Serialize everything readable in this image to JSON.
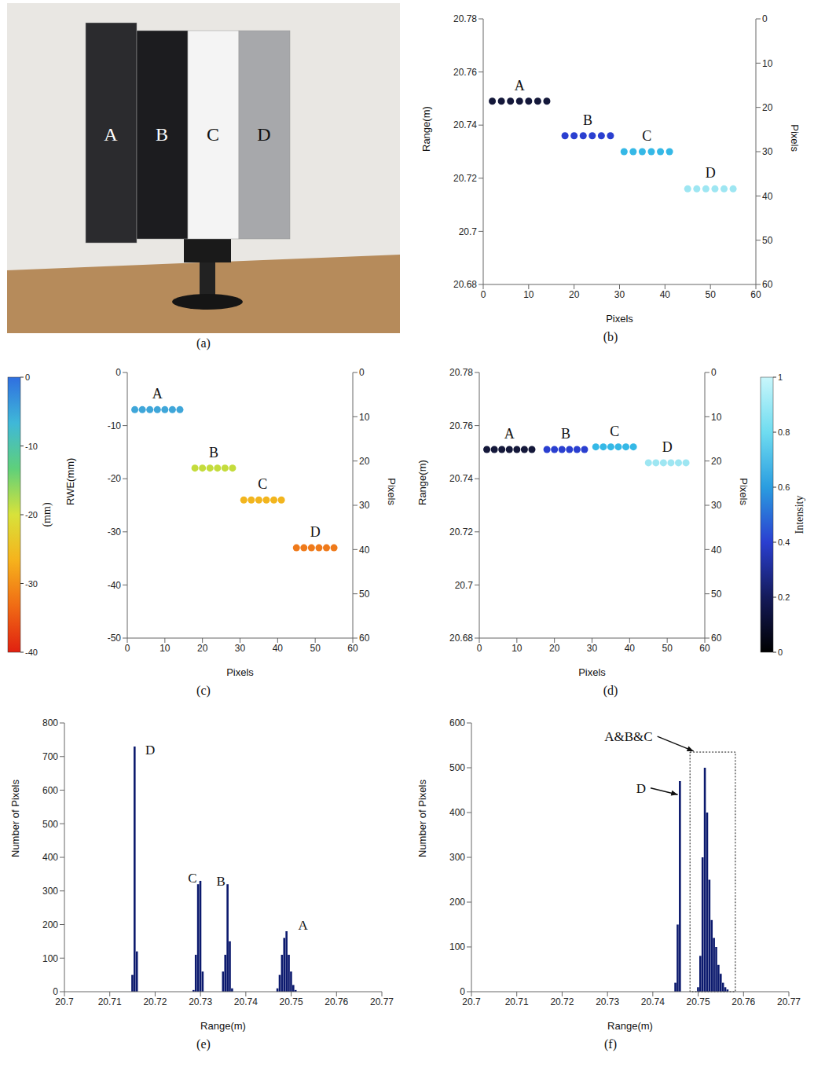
{
  "photo": {
    "caption": "(a)",
    "labels": [
      "A",
      "B",
      "C",
      "D"
    ]
  },
  "chart_data": [
    {
      "type": "scatter",
      "caption": "(b)",
      "x_label": "Pixels",
      "y_label": "Range(m)",
      "y2_label": "Pixels",
      "xlim": [
        0,
        60
      ],
      "xticks": [
        0,
        10,
        20,
        30,
        40,
        50,
        60
      ],
      "ylim": [
        20.68,
        20.78
      ],
      "yticks": [
        20.68,
        20.7,
        20.72,
        20.74,
        20.76,
        20.78
      ],
      "y2lim": [
        0,
        60
      ],
      "y2ticks": [
        0,
        10,
        20,
        30,
        40,
        50,
        60
      ],
      "series": [
        {
          "name": "A",
          "color": "#14183a",
          "x": [
            2,
            4,
            6,
            8,
            10,
            12,
            14
          ],
          "values": [
            20.749,
            20.749,
            20.749,
            20.749,
            20.749,
            20.749,
            20.749
          ]
        },
        {
          "name": "B",
          "color": "#2a3fd0",
          "x": [
            18,
            20,
            22,
            24,
            26,
            28
          ],
          "values": [
            20.736,
            20.736,
            20.736,
            20.736,
            20.736,
            20.736
          ]
        },
        {
          "name": "C",
          "color": "#35b8e6",
          "x": [
            31,
            33,
            35,
            37,
            39,
            41
          ],
          "values": [
            20.73,
            20.73,
            20.73,
            20.73,
            20.73,
            20.73
          ]
        },
        {
          "name": "D",
          "color": "#9ee6f2",
          "x": [
            45,
            47,
            49,
            51,
            53,
            55
          ],
          "values": [
            20.716,
            20.716,
            20.716,
            20.716,
            20.716,
            20.716
          ]
        }
      ]
    },
    {
      "type": "scatter",
      "caption": "(c)",
      "x_label": "Pixels",
      "y_label": "RWE(mm)",
      "y2_label": "Pixels",
      "xlim": [
        0,
        60
      ],
      "xticks": [
        0,
        10,
        20,
        30,
        40,
        50,
        60
      ],
      "ylim": [
        -50,
        0
      ],
      "yticks": [
        -50,
        -40,
        -30,
        -20,
        -10,
        0
      ],
      "y2lim": [
        0,
        60
      ],
      "y2ticks": [
        0,
        10,
        20,
        30,
        40,
        50,
        60
      ],
      "colorbar": {
        "label": "(mm)",
        "range": [
          -40,
          0
        ],
        "ticks": [
          0,
          -10,
          -20,
          -30,
          -40
        ]
      },
      "series": [
        {
          "name": "A",
          "color": "#3fa6d9",
          "x": [
            2,
            4,
            6,
            8,
            10,
            12,
            14
          ],
          "values": [
            -7,
            -7,
            -7,
            -7,
            -7,
            -7,
            -7
          ]
        },
        {
          "name": "B",
          "color": "#c4dc3c",
          "x": [
            18,
            20,
            22,
            24,
            26,
            28
          ],
          "values": [
            -18,
            -18,
            -18,
            -18,
            -18,
            -18
          ]
        },
        {
          "name": "C",
          "color": "#f2b51e",
          "x": [
            31,
            33,
            35,
            37,
            39,
            41
          ],
          "values": [
            -24,
            -24,
            -24,
            -24,
            -24,
            -24
          ]
        },
        {
          "name": "D",
          "color": "#ef7a1a",
          "x": [
            45,
            47,
            49,
            51,
            53,
            55
          ],
          "values": [
            -33,
            -33,
            -33,
            -33,
            -33,
            -33
          ]
        }
      ]
    },
    {
      "type": "scatter",
      "caption": "(d)",
      "x_label": "Pixels",
      "y_label": "Range(m)",
      "y2_label": "Pixels",
      "xlim": [
        0,
        60
      ],
      "xticks": [
        0,
        10,
        20,
        30,
        40,
        50,
        60
      ],
      "ylim": [
        20.68,
        20.78
      ],
      "yticks": [
        20.68,
        20.7,
        20.72,
        20.74,
        20.76,
        20.78
      ],
      "y2lim": [
        0,
        60
      ],
      "y2ticks": [
        0,
        10,
        20,
        30,
        40,
        50,
        60
      ],
      "colorbar": {
        "label": "Intensity",
        "range": [
          0,
          1
        ],
        "ticks": [
          0,
          0.2,
          0.4,
          0.6,
          0.8,
          1
        ]
      },
      "series": [
        {
          "name": "A",
          "color": "#14183a",
          "x": [
            2,
            4,
            6,
            8,
            10,
            12,
            14
          ],
          "values": [
            20.751,
            20.751,
            20.751,
            20.751,
            20.751,
            20.751,
            20.751
          ]
        },
        {
          "name": "B",
          "color": "#2a3fd0",
          "x": [
            18,
            20,
            22,
            24,
            26,
            28
          ],
          "values": [
            20.751,
            20.751,
            20.751,
            20.751,
            20.751,
            20.751
          ]
        },
        {
          "name": "C",
          "color": "#35b8e6",
          "x": [
            31,
            33,
            35,
            37,
            39,
            41
          ],
          "values": [
            20.752,
            20.752,
            20.752,
            20.752,
            20.752,
            20.752
          ]
        },
        {
          "name": "D",
          "color": "#9ee6f2",
          "x": [
            45,
            47,
            49,
            51,
            53,
            55
          ],
          "values": [
            20.746,
            20.746,
            20.746,
            20.746,
            20.746,
            20.746
          ]
        }
      ]
    },
    {
      "type": "bar",
      "caption": "(e)",
      "x_label": "Range(m)",
      "y_label": "Number of Pixels",
      "color": "#0c1a6e",
      "xlim": [
        20.7,
        20.77
      ],
      "xticks": [
        20.7,
        20.71,
        20.72,
        20.73,
        20.74,
        20.75,
        20.76,
        20.77
      ],
      "ylim": [
        0,
        800
      ],
      "yticks": [
        0,
        100,
        200,
        300,
        400,
        500,
        600,
        700,
        800
      ],
      "x": [
        20.715,
        20.7155,
        20.716,
        20.7285,
        20.729,
        20.7295,
        20.73,
        20.7305,
        20.735,
        20.7355,
        20.736,
        20.7365,
        20.737,
        20.747,
        20.7475,
        20.748,
        20.7485,
        20.749,
        20.7495,
        20.75,
        20.7505,
        20.751
      ],
      "values": [
        50,
        730,
        120,
        5,
        110,
        320,
        330,
        60,
        60,
        110,
        320,
        150,
        10,
        10,
        50,
        110,
        160,
        180,
        110,
        60,
        20,
        5
      ],
      "annotations": [
        {
          "text": "D",
          "x": 20.7168,
          "y": 720
        },
        {
          "text": "C",
          "x": 20.7262,
          "y": 340
        },
        {
          "text": "B",
          "x": 20.7325,
          "y": 330
        },
        {
          "text": "A",
          "x": 20.7505,
          "y": 200
        }
      ]
    },
    {
      "type": "bar",
      "caption": "(f)",
      "x_label": "Range(m)",
      "y_label": "Number of Pixels",
      "color": "#0c1a6e",
      "xlim": [
        20.7,
        20.77
      ],
      "xticks": [
        20.7,
        20.71,
        20.72,
        20.73,
        20.74,
        20.75,
        20.76,
        20.77
      ],
      "ylim": [
        0,
        600
      ],
      "yticks": [
        0,
        100,
        200,
        300,
        400,
        500,
        600
      ],
      "x": [
        20.745,
        20.7455,
        20.746,
        20.75,
        20.7505,
        20.751,
        20.7515,
        20.752,
        20.7525,
        20.753,
        20.7535,
        20.754,
        20.7545,
        20.755,
        20.7555,
        20.756,
        20.7565
      ],
      "values": [
        20,
        150,
        470,
        10,
        80,
        300,
        500,
        400,
        250,
        160,
        120,
        100,
        60,
        40,
        20,
        10,
        5
      ],
      "box": {
        "x": [
          20.7482,
          20.7582
        ],
        "y": [
          0,
          535
        ]
      },
      "annotations": [
        {
          "text": "A&B&C",
          "x": 20.741,
          "y": 570,
          "arrow_to": [
            20.749,
            537
          ]
        },
        {
          "text": "D",
          "x": 20.7395,
          "y": 455,
          "arrow_to": [
            20.7455,
            440
          ]
        }
      ]
    }
  ]
}
